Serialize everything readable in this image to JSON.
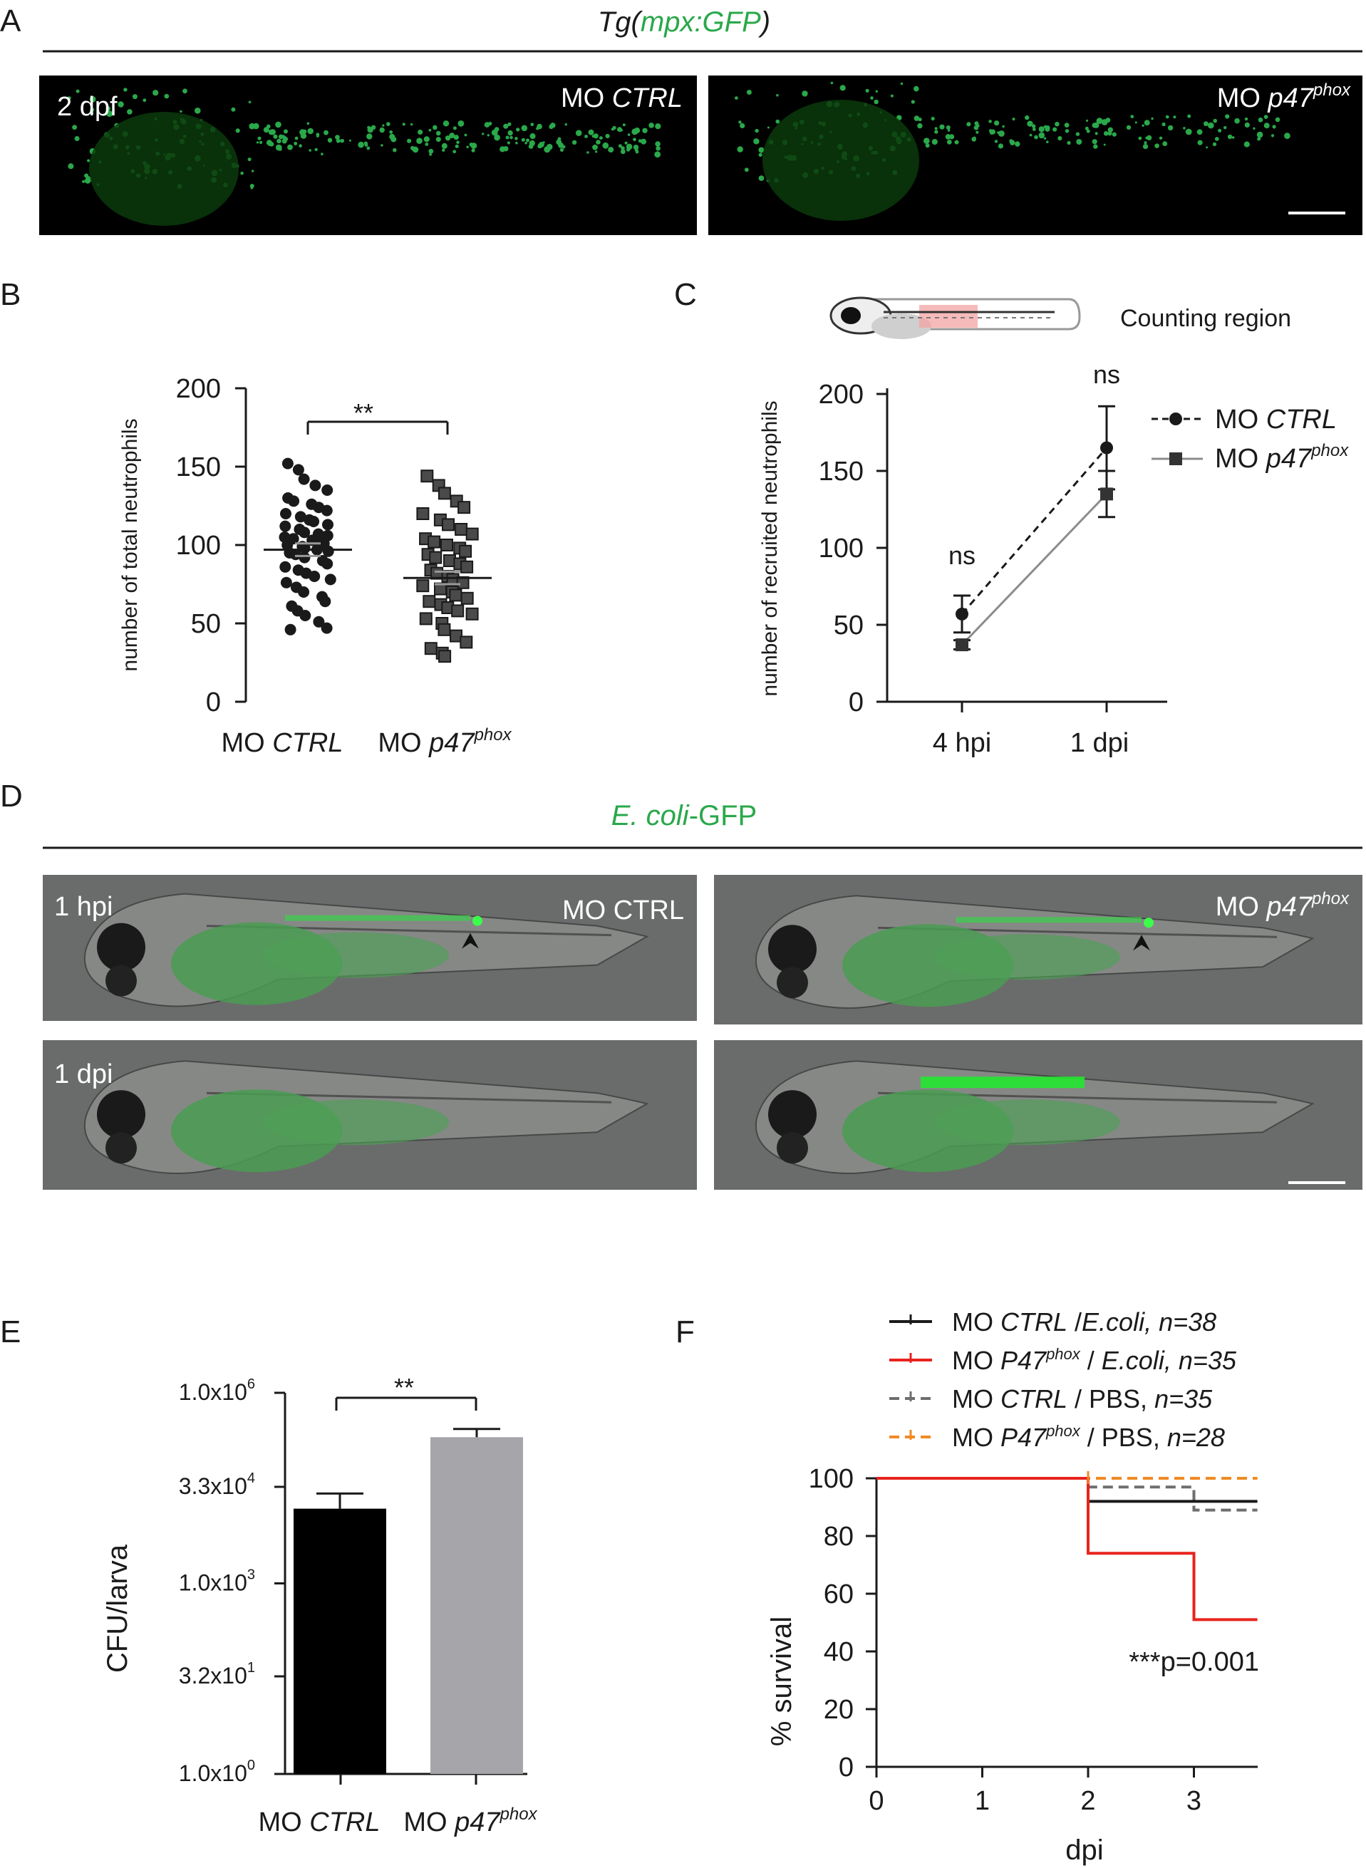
{
  "panels": {
    "A": {
      "letter": "A",
      "title_pre": "Tg(",
      "title_mid": "mpx:GFP",
      "title_post": ")",
      "stage": "2 dpf",
      "left_label_pre": "MO ",
      "left_label_ital": "CTRL",
      "right_label_pre": "MO ",
      "right_label_ital": "p47",
      "right_label_sup": "phox"
    },
    "B": {
      "letter": "B",
      "ylabel": "number of total neutrophils",
      "yticks": [
        "200",
        "150",
        "100",
        "50",
        "0"
      ],
      "cat1_pre": "MO ",
      "cat1_ital": "CTRL",
      "cat2_pre": "MO ",
      "cat2_ital": "p47",
      "cat2_sup": "phox",
      "sig": "**"
    },
    "C": {
      "letter": "C",
      "region_label": "Counting region",
      "ylabel": "number of recruited neutrophils",
      "yticks": [
        "200",
        "150",
        "100",
        "50",
        "0"
      ],
      "xticks": [
        "4 hpi",
        "1 dpi"
      ],
      "ns1": "ns",
      "ns2": "ns",
      "legend1_pre": "MO ",
      "legend1_ital": "CTRL",
      "legend2_pre": "MO ",
      "legend2_ital": "p47",
      "legend2_sup": "phox"
    },
    "D": {
      "letter": "D",
      "title_ital": "E. coli",
      "title_post": "-GFP",
      "row1": "1 hpi",
      "row2": "1 dpi",
      "left_label": "MO CTRL",
      "right_label_pre": "MO ",
      "right_label_ital": "p47",
      "right_label_sup": "phox"
    },
    "E": {
      "letter": "E",
      "ylabel": "CFU/larva",
      "yticks": [
        {
          "base": "1.0x10",
          "exp": "6"
        },
        {
          "base": "3.3x10",
          "exp": "4"
        },
        {
          "base": "1.0x10",
          "exp": "3"
        },
        {
          "base": "3.2x10",
          "exp": "1"
        },
        {
          "base": "1.0x10",
          "exp": "0"
        }
      ],
      "cat1_pre": "MO ",
      "cat1_ital": "CTRL",
      "cat2_pre": "MO ",
      "cat2_ital": "p47",
      "cat2_sup": "phox",
      "sig": "**"
    },
    "F": {
      "letter": "F",
      "ylabel": "% survival",
      "xlabel": "dpi",
      "yticks": [
        "100",
        "80",
        "60",
        "40",
        "20",
        "0"
      ],
      "xticks": [
        "0",
        "1",
        "2",
        "3"
      ],
      "pvalue": "***p=0.001",
      "legend": [
        {
          "pre": "MO ",
          "ital": "CTRL",
          "sup": "",
          "mid": " /",
          "ital2": "E.coli, n=38",
          "post": ""
        },
        {
          "pre": "MO ",
          "ital": "P47",
          "sup": "phox",
          "mid": " / ",
          "ital2": "E.coli, n=35",
          "post": ""
        },
        {
          "pre": "MO ",
          "ital": "CTRL",
          "sup": "",
          "mid": " / PBS, ",
          "ital2": "n=35",
          "post": ""
        },
        {
          "pre": "MO ",
          "ital": "P47",
          "sup": "phox",
          "mid": " / PBS, ",
          "ital2": "n=28",
          "post": ""
        }
      ]
    }
  },
  "colors": {
    "gfp_green": "#2aa84a",
    "red": "#e8231e",
    "orange": "#f08a24",
    "gray_line": "#8c8c8c",
    "bar_ctrl": "#000000",
    "bar_p47": "#a5a5aa"
  },
  "chart_data": [
    {
      "panel": "B",
      "type": "scatter",
      "categories": [
        "MO CTRL",
        "MO p47phox"
      ],
      "ylabel": "number of total neutrophils",
      "ylim": [
        0,
        200
      ],
      "series": [
        {
          "values": [
            152,
            148,
            142,
            138,
            135,
            130,
            128,
            126,
            124,
            122,
            120,
            118,
            116,
            115,
            113,
            112,
            110,
            108,
            107,
            106,
            105,
            104,
            103,
            102,
            101,
            100,
            99,
            98,
            97,
            96,
            95,
            94,
            92,
            90,
            88,
            86,
            84,
            82,
            80,
            78,
            76,
            73,
            70,
            67,
            64,
            61,
            58,
            55,
            51,
            47,
            46
          ]
        },
        {
          "values": [
            144,
            138,
            133,
            128,
            124,
            120,
            116,
            113,
            110,
            107,
            104,
            102,
            100,
            98,
            96,
            94,
            92,
            90,
            88,
            86,
            84,
            82,
            80,
            78,
            76,
            74,
            72,
            70,
            68,
            66,
            64,
            62,
            60,
            58,
            56,
            53,
            50,
            46,
            42,
            38,
            34,
            31,
            29
          ]
        }
      ],
      "means": [
        97,
        79
      ],
      "sem": [
        4,
        4
      ],
      "significance": "**"
    },
    {
      "panel": "C",
      "type": "line",
      "x": [
        "4 hpi",
        "1 dpi"
      ],
      "ylabel": "number of recruited neutrophils",
      "ylim": [
        0,
        200
      ],
      "series": [
        {
          "name": "MO CTRL",
          "values": [
            57,
            165
          ],
          "err": [
            12,
            27
          ]
        },
        {
          "name": "MO p47phox",
          "values": [
            37,
            135
          ],
          "err": [
            3,
            15
          ]
        }
      ],
      "annotations": [
        "ns",
        "ns"
      ]
    },
    {
      "panel": "E",
      "type": "bar",
      "categories": [
        "MO CTRL",
        "MO p47phox"
      ],
      "ylabel": "CFU/larva",
      "log_scale": true,
      "values": [
        15000,
        200000
      ],
      "err": [
        11000,
        70000
      ],
      "significance": "**"
    },
    {
      "panel": "F",
      "type": "line",
      "xlabel": "dpi",
      "ylabel": "% survival",
      "xlim": [
        0,
        3.6
      ],
      "ylim": [
        0,
        100
      ],
      "series": [
        {
          "name": "MO CTRL /E.coli, n=38",
          "x": [
            0,
            2,
            2,
            3.6
          ],
          "values": [
            100,
            100,
            92,
            92
          ]
        },
        {
          "name": "MO P47phox / E.coli, n=35",
          "x": [
            0,
            2,
            2,
            3,
            3,
            3.6
          ],
          "values": [
            100,
            100,
            74,
            74,
            51,
            51
          ]
        },
        {
          "name": "MO CTRL / PBS, n=35",
          "x": [
            0,
            2,
            2,
            3,
            3,
            3.6
          ],
          "values": [
            100,
            100,
            97,
            97,
            89,
            89
          ]
        },
        {
          "name": "MO P47phox / PBS, n=28",
          "x": [
            0,
            3.6
          ],
          "values": [
            100,
            100
          ]
        }
      ],
      "annotation": "***p=0.001"
    }
  ]
}
